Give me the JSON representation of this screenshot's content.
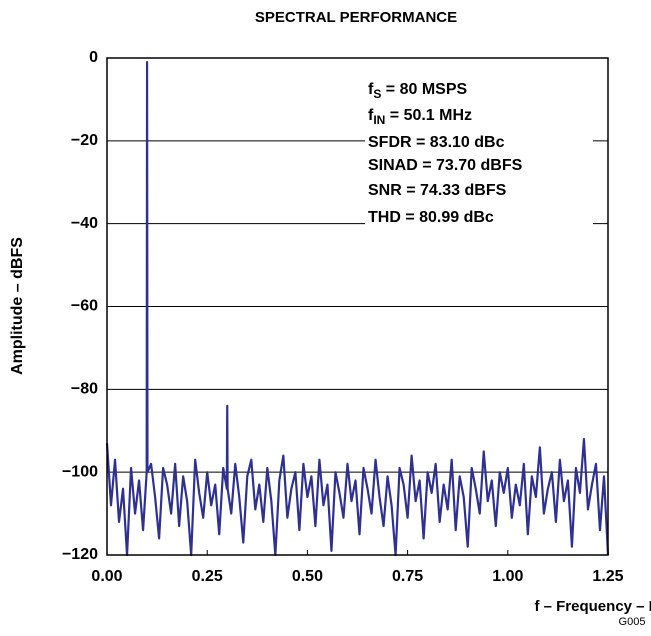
{
  "chart_data": {
    "type": "line",
    "title": "SPECTRAL PERFORMANCE",
    "x_label": "f – Frequency – MHz",
    "y_label": "Amplitude – dBFS",
    "figure_id": "G005",
    "color": "#2e3192",
    "grid": true,
    "xlim": [
      0,
      1.25
    ],
    "ylim": [
      -120,
      0
    ],
    "xticks": [
      {
        "value": 0,
        "label": "0.00"
      },
      {
        "value": 0.25,
        "label": "0.25"
      },
      {
        "value": 0.5,
        "label": "0.50"
      },
      {
        "value": 0.75,
        "label": "0.75"
      },
      {
        "value": 1,
        "label": "1.00"
      },
      {
        "value": 1.25,
        "label": "1.25"
      }
    ],
    "yticks": [
      0,
      {
        "value": -20,
        "label": "−20"
      },
      {
        "value": -40,
        "label": "−40"
      },
      {
        "value": -60,
        "label": "−60"
      },
      {
        "value": -80,
        "label": "−80"
      },
      {
        "value": -100,
        "label": "−100"
      },
      {
        "value": -120,
        "label": "−120"
      }
    ],
    "annotations": [
      {
        "base": "f",
        "sub": "S",
        "rest": " = 80 MSPS"
      },
      {
        "base": "f",
        "sub": "IN",
        "rest": " = 50.1 MHz"
      },
      {
        "base": "SFDR = 83.10 dBc"
      },
      {
        "base": "SINAD = 73.70 dBFS"
      },
      {
        "base": "SNR = 74.33 dBFS"
      },
      {
        "base": "THD = 80.99 dBc"
      }
    ],
    "x": [
      0,
      0.01,
      0.02,
      0.03,
      0.04,
      0.05,
      0.06,
      0.07,
      0.08,
      0.09,
      0.099,
      0.1,
      0.101,
      0.11,
      0.12,
      0.13,
      0.14,
      0.15,
      0.16,
      0.17,
      0.18,
      0.19,
      0.2,
      0.21,
      0.22,
      0.23,
      0.24,
      0.25,
      0.26,
      0.27,
      0.28,
      0.29,
      0.299,
      0.3,
      0.301,
      0.31,
      0.32,
      0.33,
      0.34,
      0.35,
      0.36,
      0.37,
      0.38,
      0.39,
      0.4,
      0.41,
      0.42,
      0.43,
      0.44,
      0.45,
      0.46,
      0.47,
      0.48,
      0.49,
      0.5,
      0.51,
      0.52,
      0.53,
      0.54,
      0.55,
      0.56,
      0.57,
      0.58,
      0.59,
      0.6,
      0.61,
      0.62,
      0.63,
      0.64,
      0.65,
      0.66,
      0.67,
      0.68,
      0.69,
      0.7,
      0.71,
      0.72,
      0.73,
      0.74,
      0.75,
      0.76,
      0.77,
      0.78,
      0.79,
      0.8,
      0.81,
      0.82,
      0.83,
      0.84,
      0.85,
      0.86,
      0.87,
      0.88,
      0.89,
      0.9,
      0.91,
      0.92,
      0.93,
      0.94,
      0.95,
      0.96,
      0.97,
      0.98,
      0.99,
      1,
      1.01,
      1.02,
      1.03,
      1.04,
      1.05,
      1.06,
      1.07,
      1.08,
      1.09,
      1.1,
      1.11,
      1.12,
      1.13,
      1.14,
      1.15,
      1.16,
      1.17,
      1.18,
      1.19,
      1.2,
      1.21,
      1.22,
      1.23,
      1.24,
      1.25
    ],
    "values": [
      -93,
      -108,
      -97,
      -112,
      -104,
      -120,
      -99,
      -110,
      -102,
      -114,
      -100,
      -1,
      -100,
      -98,
      -106,
      -116,
      -99,
      -103,
      -110,
      -98,
      -113,
      -101,
      -107,
      -120,
      -97,
      -105,
      -111,
      -100,
      -108,
      -103,
      -115,
      -99,
      -104,
      -84,
      -104,
      -110,
      -98,
      -106,
      -117,
      -101,
      -97,
      -109,
      -103,
      -112,
      -99,
      -107,
      -120,
      -102,
      -96,
      -111,
      -104,
      -100,
      -114,
      -98,
      -106,
      -101,
      -113,
      -97,
      -108,
      -103,
      -119,
      -100,
      -105,
      -111,
      -98,
      -107,
      -102,
      -115,
      -99,
      -104,
      -110,
      -97,
      -106,
      -113,
      -101,
      -108,
      -120,
      -99,
      -103,
      -111,
      -96,
      -107,
      -102,
      -116,
      -100,
      -105,
      -98,
      -112,
      -103,
      -109,
      -97,
      -114,
      -101,
      -106,
      -118,
      -99,
      -104,
      -110,
      -95,
      -107,
      -102,
      -113,
      -100,
      -105,
      -99,
      -111,
      -103,
      -108,
      -98,
      -115,
      -101,
      -106,
      -94,
      -110,
      -104,
      -100,
      -112,
      -97,
      -107,
      -102,
      -118,
      -99,
      -105,
      -92,
      -109,
      -103,
      -98,
      -114,
      -101,
      -120
    ]
  }
}
